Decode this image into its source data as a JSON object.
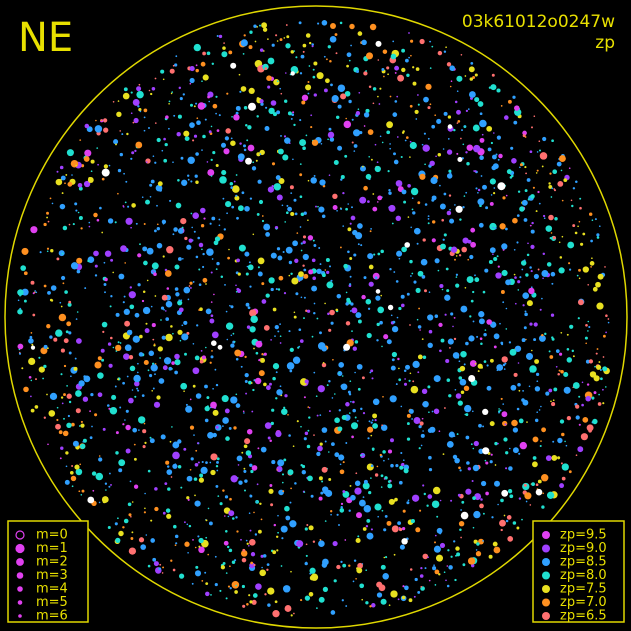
{
  "header": {
    "direction": "NE",
    "frame_id": "03k61012o0247w",
    "mode": "zp"
  },
  "legend_magnitude": [
    {
      "label": "m=0",
      "size": 4,
      "hollow": true
    },
    {
      "label": "m=1",
      "size": 4
    },
    {
      "label": "m=2",
      "size": 3.3
    },
    {
      "label": "m=3",
      "size": 2.7
    },
    {
      "label": "m=4",
      "size": 2.2
    },
    {
      "label": "m=5",
      "size": 1.7
    },
    {
      "label": "m=6",
      "size": 1.2
    }
  ],
  "legend_zp": [
    {
      "label": "zp=9.5",
      "color": "#e040f0"
    },
    {
      "label": "zp=9.0",
      "color": "#a040ff"
    },
    {
      "label": "zp=8.5",
      "color": "#30a0ff"
    },
    {
      "label": "zp=8.0",
      "color": "#20e0d0"
    },
    {
      "label": "zp=7.5",
      "color": "#e8e020"
    },
    {
      "label": "zp=7.0",
      "color": "#ff9020"
    },
    {
      "label": "zp=6.5",
      "color": "#ff7070"
    }
  ]
}
